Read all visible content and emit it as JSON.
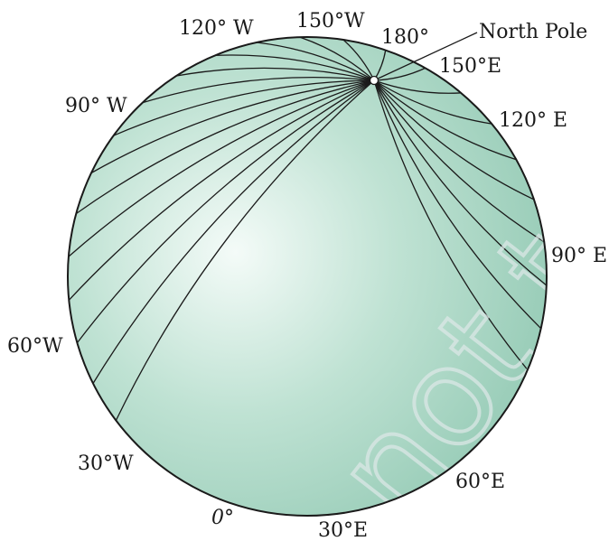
{
  "labels": {
    "north_pole": "North Pole",
    "w120": "120° W",
    "w150": "150°W",
    "l180": "180°",
    "e150": "150°E",
    "e120": "120° E",
    "w90": "90° W",
    "e90": "90° E",
    "w60": "60°W",
    "w30": "30°W",
    "e60": "60°E",
    "zero": "0°",
    "e30": "30°E"
  },
  "watermark": "not to be republished",
  "colors": {
    "sphere_light": "#f4fbf8",
    "sphere_mid": "#bfe2d3",
    "sphere_dark": "#8fc7b1",
    "line": "#1a1a1a"
  }
}
